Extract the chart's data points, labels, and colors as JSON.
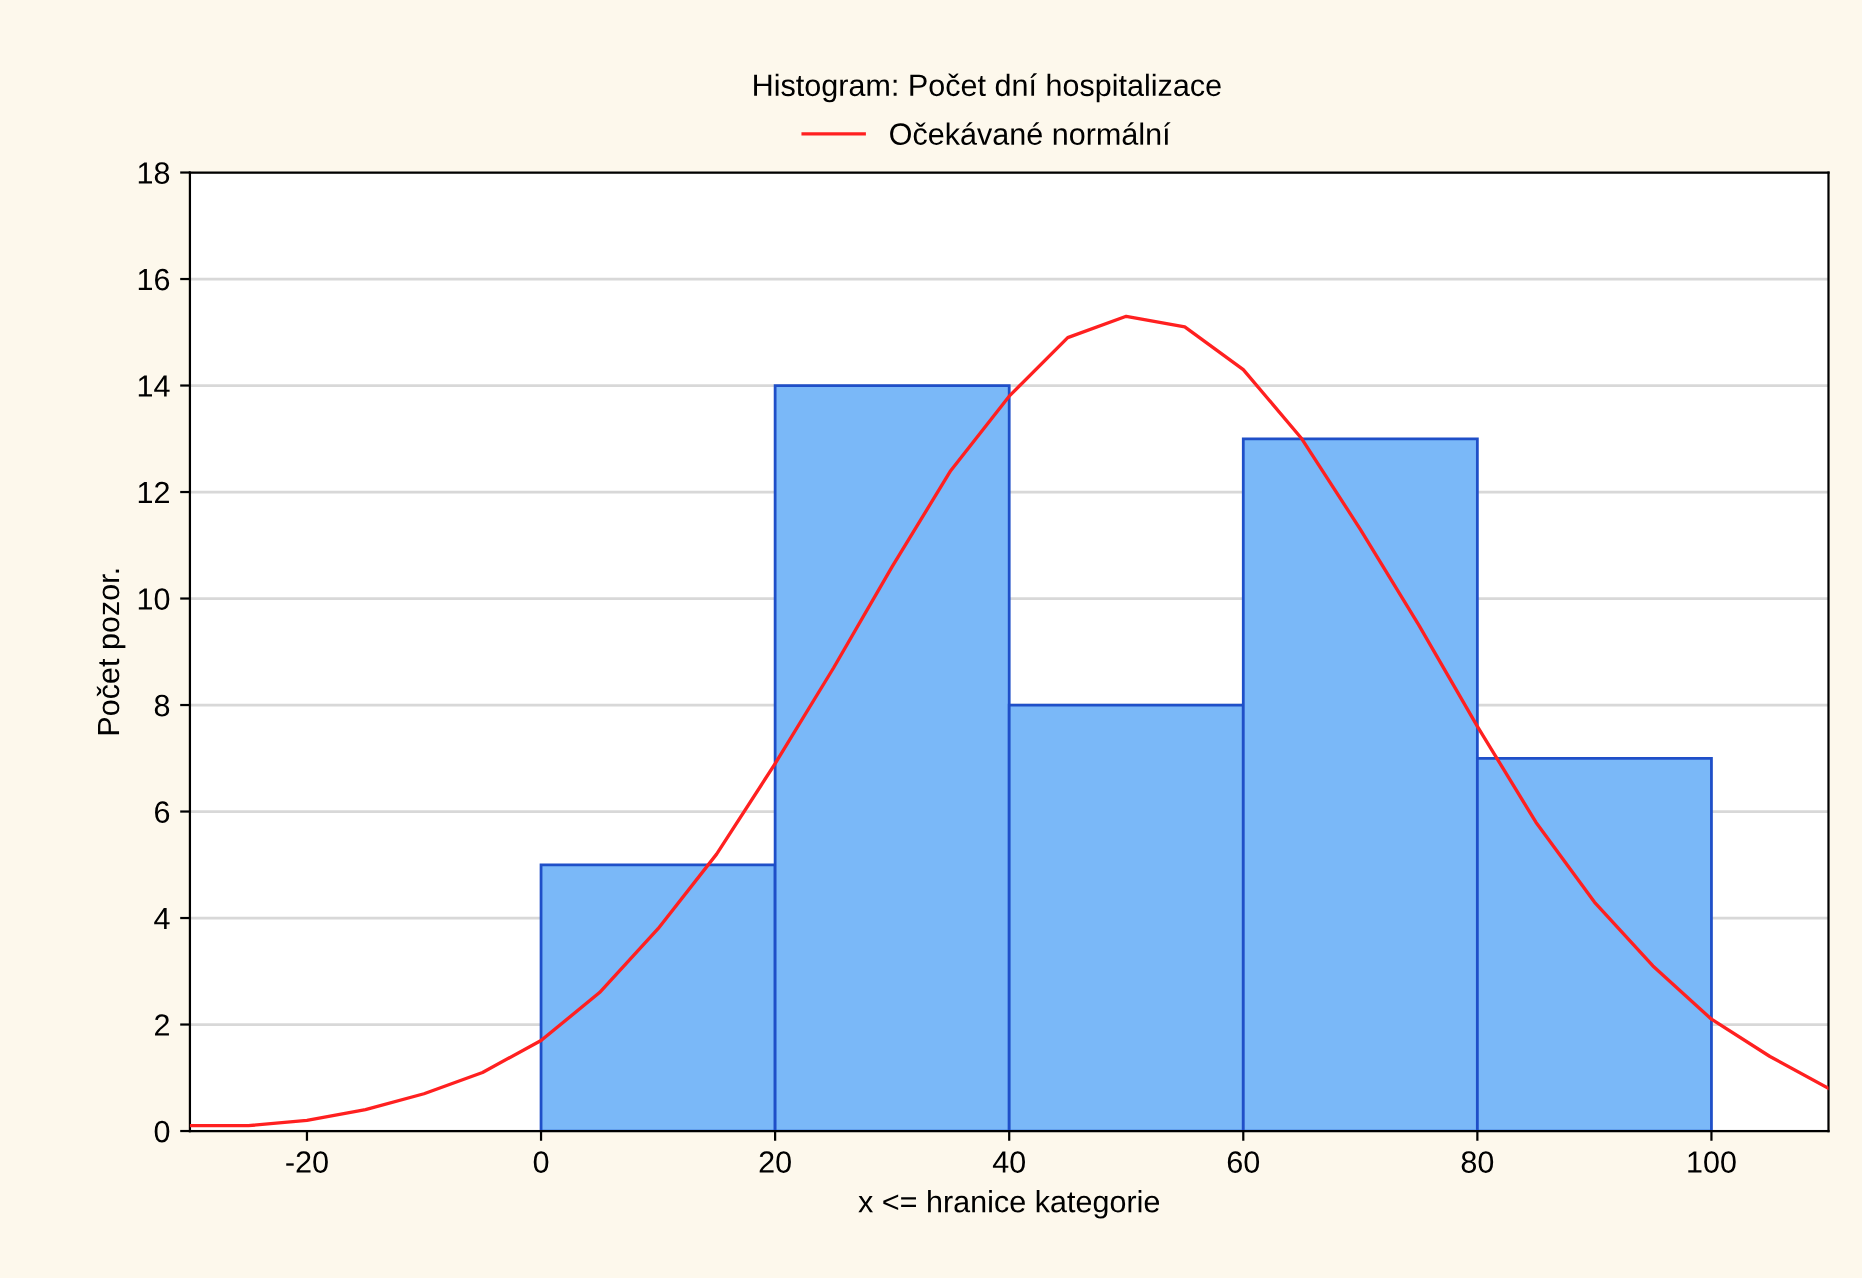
{
  "chart_data": {
    "type": "histogram",
    "title": "Histogram: Počet dní hospitalizace",
    "xlabel": "x <= hranice kategorie",
    "ylabel": "Počet pozor.",
    "bins": [
      0,
      20,
      40,
      60,
      80,
      100
    ],
    "values": [
      5,
      14,
      8,
      13,
      7
    ],
    "color": "#7ab8f8",
    "series": [
      {
        "type": "line",
        "name": "Očekávané normální",
        "color": "#ff2020",
        "x": [
          -30,
          -25,
          -20,
          -15,
          -10,
          -5,
          0,
          5,
          10,
          15,
          20,
          25,
          30,
          35,
          40,
          45,
          50,
          55,
          60,
          65,
          70,
          75,
          80,
          85,
          90,
          95,
          100,
          105,
          110
        ],
        "values": [
          0.1,
          0.1,
          0.2,
          0.4,
          0.7,
          1.1,
          1.7,
          2.6,
          3.8,
          5.2,
          6.9,
          8.7,
          10.6,
          12.4,
          13.8,
          14.9,
          15.3,
          15.1,
          14.3,
          13.0,
          11.3,
          9.5,
          7.6,
          5.8,
          4.3,
          3.1,
          2.1,
          1.4,
          0.8
        ]
      }
    ],
    "xlim": [
      -30,
      110
    ],
    "xticks": [
      -20,
      0,
      20,
      40,
      60,
      80,
      100
    ],
    "ylim": [
      0,
      18
    ],
    "yticks": [
      0,
      2,
      4,
      6,
      8,
      10,
      12,
      14,
      16,
      18
    ],
    "grid": "y",
    "legend": "top"
  }
}
